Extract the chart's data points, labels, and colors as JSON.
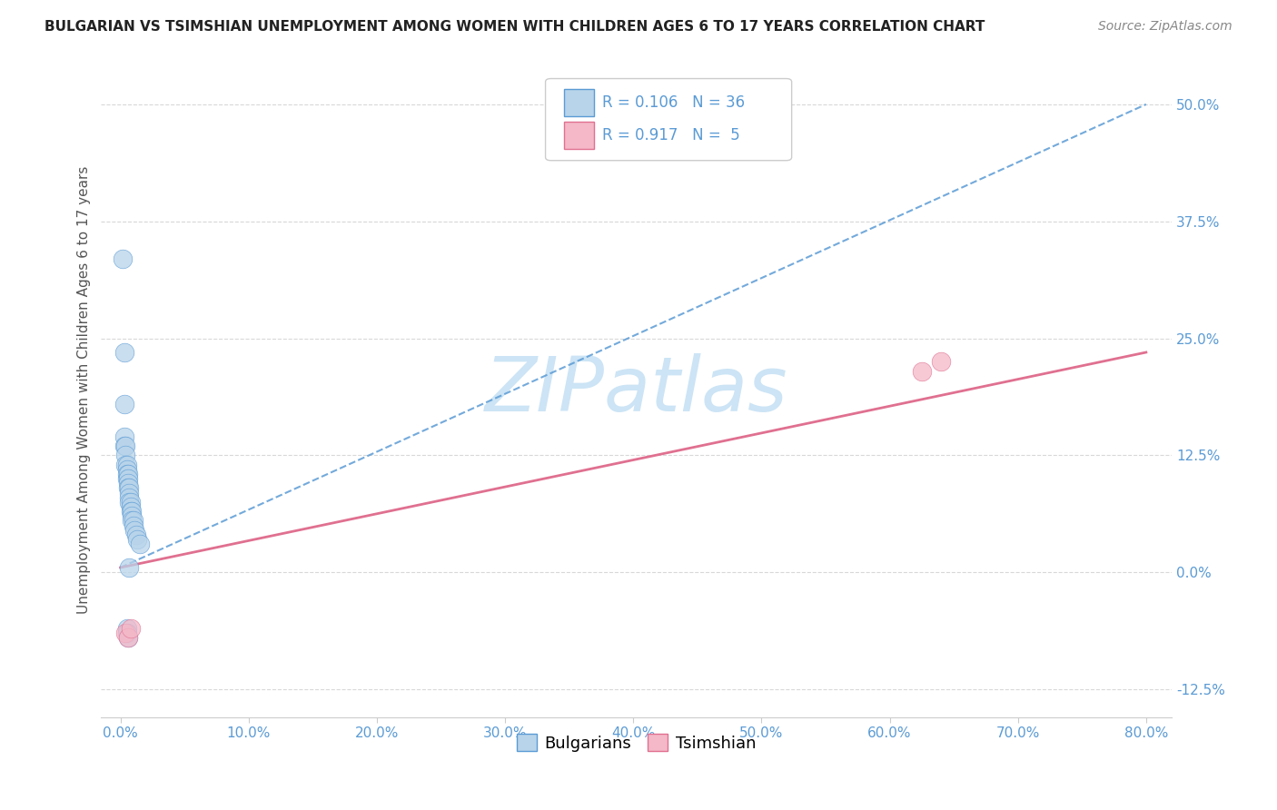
{
  "title": "BULGARIAN VS TSIMSHIAN UNEMPLOYMENT AMONG WOMEN WITH CHILDREN AGES 6 TO 17 YEARS CORRELATION CHART",
  "source": "Source: ZipAtlas.com",
  "ylabel_label": "Unemployment Among Women with Children Ages 6 to 17 years",
  "legend_labels": [
    "Bulgarians",
    "Tsimshian"
  ],
  "legend_R": [
    "0.106",
    "0.917"
  ],
  "legend_N": [
    "36",
    "5"
  ],
  "blue_fill": "#b8d4ea",
  "blue_edge": "#5b9bd5",
  "pink_fill": "#f4b8c8",
  "pink_edge": "#e07090",
  "blue_line_color": "#5b9bd5",
  "pink_line_color": "#e07090",
  "blue_x": [
    0.002,
    0.003,
    0.003,
    0.003,
    0.004,
    0.004,
    0.004,
    0.005,
    0.005,
    0.005,
    0.005,
    0.006,
    0.006,
    0.006,
    0.006,
    0.007,
    0.007,
    0.007,
    0.007,
    0.008,
    0.008,
    0.008,
    0.009,
    0.009,
    0.009,
    0.01,
    0.01,
    0.011,
    0.012,
    0.013,
    0.003,
    0.015,
    0.005,
    0.005,
    0.006,
    0.007
  ],
  "blue_y": [
    0.335,
    0.18,
    0.145,
    0.135,
    0.135,
    0.125,
    0.115,
    0.115,
    0.11,
    0.105,
    0.1,
    0.105,
    0.1,
    0.095,
    0.09,
    0.09,
    0.085,
    0.08,
    0.075,
    0.075,
    0.07,
    0.065,
    0.065,
    0.06,
    0.055,
    0.055,
    0.05,
    0.045,
    0.04,
    0.035,
    0.235,
    0.03,
    -0.06,
    -0.065,
    -0.07,
    0.005
  ],
  "pink_x": [
    0.004,
    0.006,
    0.008,
    0.625,
    0.64
  ],
  "pink_y": [
    -0.065,
    -0.07,
    -0.06,
    0.215,
    0.225
  ],
  "blue_line_x0": 0.0,
  "blue_line_y0": 0.005,
  "blue_line_x1": 0.8,
  "blue_line_y1": 0.5,
  "pink_line_x0": 0.0,
  "pink_line_y0": 0.005,
  "pink_line_x1": 0.8,
  "pink_line_y1": 0.235,
  "xlim": [
    -0.015,
    0.82
  ],
  "ylim": [
    -0.155,
    0.545
  ],
  "x_ticks": [
    0.0,
    0.1,
    0.2,
    0.3,
    0.4,
    0.5,
    0.6,
    0.7,
    0.8
  ],
  "y_ticks": [
    -0.125,
    0.0,
    0.125,
    0.25,
    0.375,
    0.5
  ],
  "tick_color": "#5b9bd5",
  "grid_color": "#d8d8d8",
  "background_color": "#ffffff",
  "watermark_text": "ZIPatlas",
  "watermark_color": "#cce4f5",
  "title_fontsize": 11,
  "source_fontsize": 10,
  "tick_fontsize": 11,
  "ylabel_fontsize": 11
}
